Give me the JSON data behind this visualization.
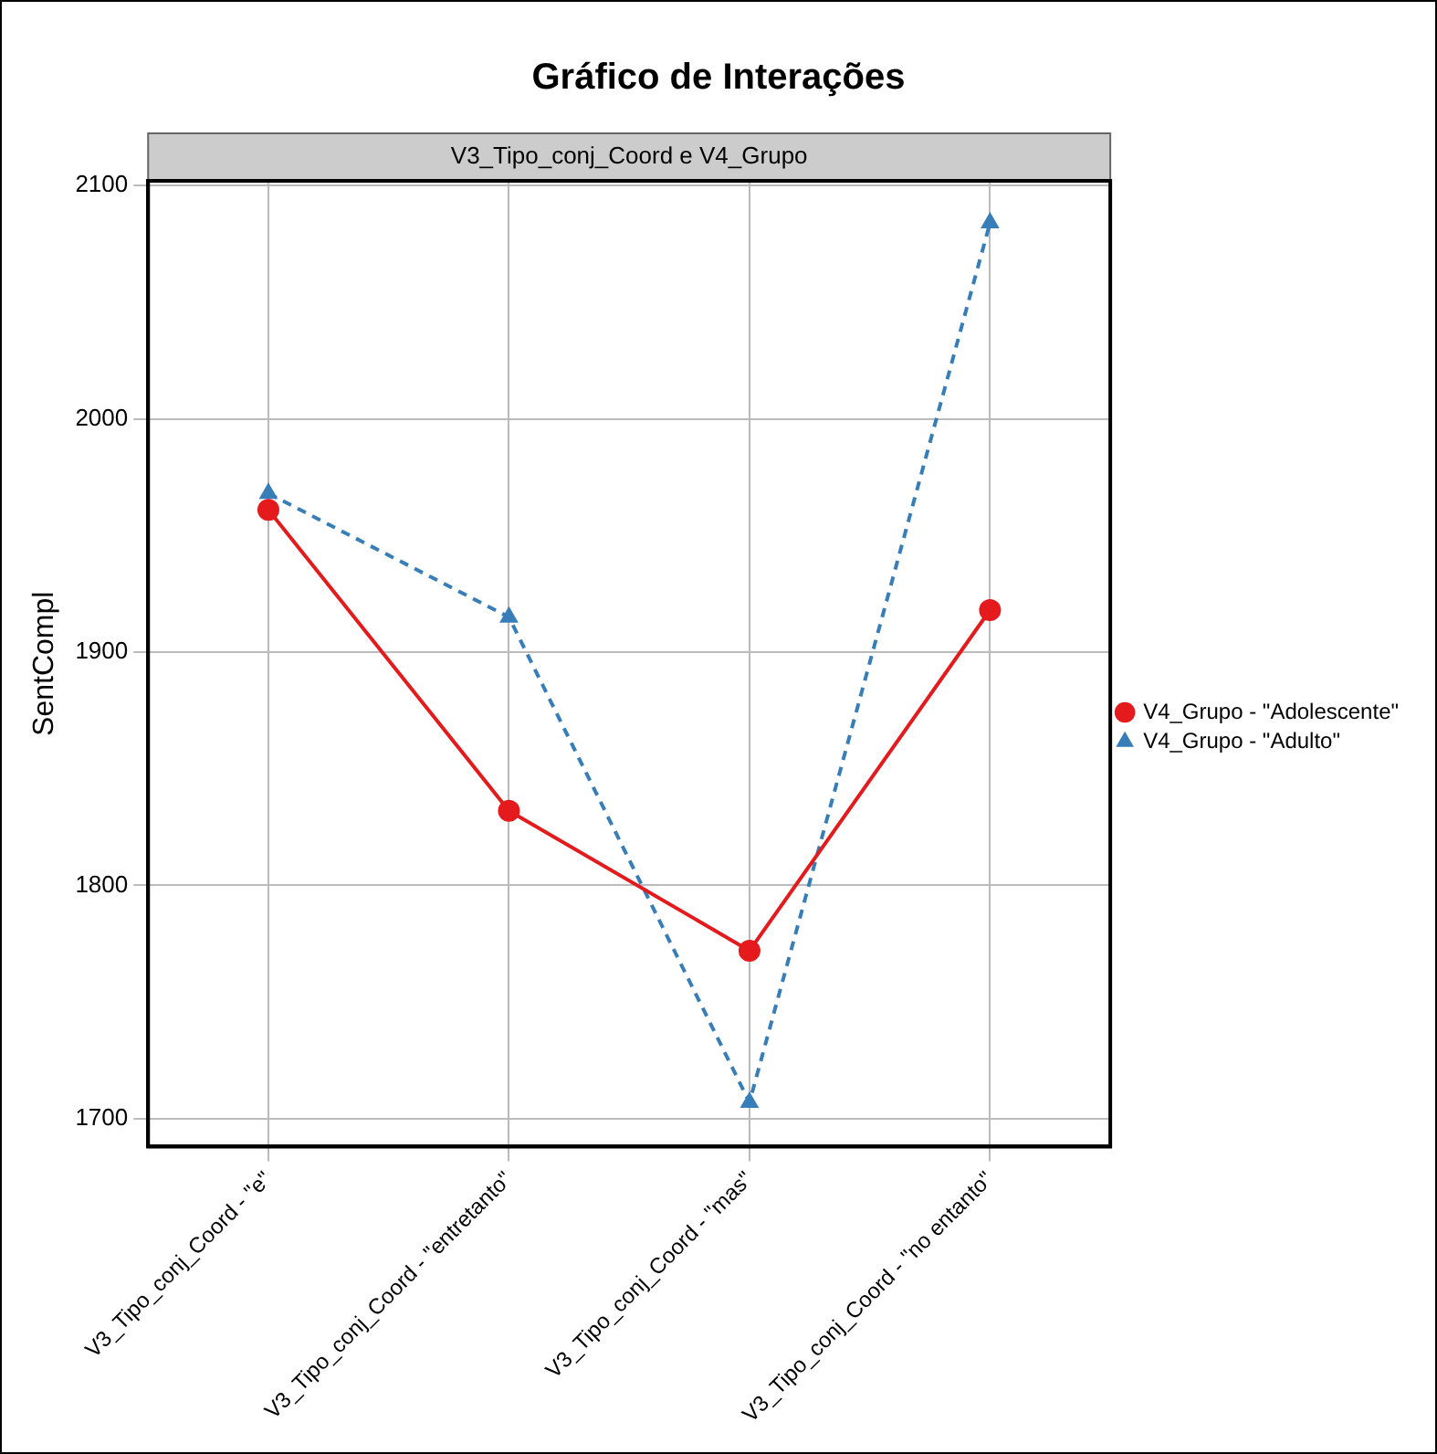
{
  "chart_data": {
    "type": "line",
    "title": "Gráfico de Interações",
    "subtitle": "V3_Tipo_conj_Coord e V4_Grupo",
    "ylabel": "SentCompl",
    "categories": [
      "V3_Tipo_conj_Coord - \"e\"",
      "V3_Tipo_conj_Coord - \"entretanto\"",
      "V3_Tipo_conj_Coord - \"mas\"",
      "V3_Tipo_conj_Coord - \"no entanto\""
    ],
    "series": [
      {
        "name": "V4_Grupo - \"Adolescente\"",
        "color": "#e41a1c",
        "values": [
          1961,
          1832,
          1772,
          1918
        ],
        "marker": "circle",
        "line_style": "solid"
      },
      {
        "name": "V4_Grupo - \"Adulto\"",
        "color": "#377eb8",
        "values": [
          1968,
          1915,
          1707,
          2084
        ],
        "marker": "triangle",
        "line_style": "dashed"
      }
    ],
    "ylim": [
      1688,
      2102
    ],
    "yticks": [
      1700,
      1800,
      1900,
      2000,
      2100
    ],
    "grid": true,
    "legend": "right"
  }
}
